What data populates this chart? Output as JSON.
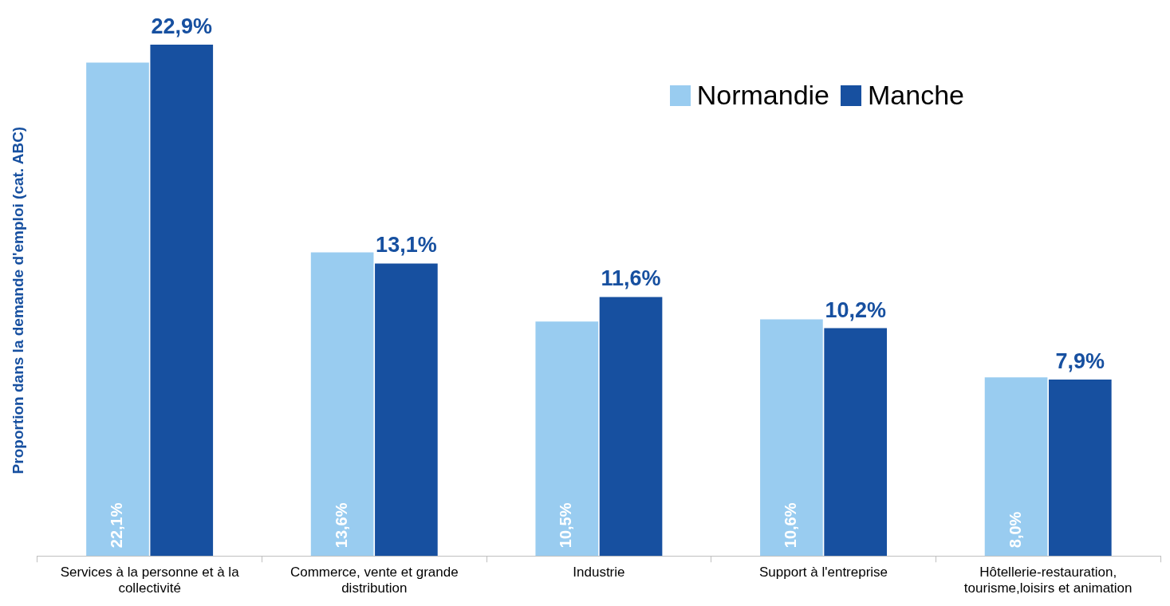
{
  "chart_data": {
    "type": "bar",
    "ylabel": "Proportion dans la demande d'emploi (cat. ABC)",
    "categories": [
      "Services à la personne et à la collectivité",
      "Commerce, vente et grande distribution",
      "Industrie",
      "Support à l'entreprise",
      "Hôtellerie-restauration, tourisme,loisirs et animation"
    ],
    "series": [
      {
        "name": "Normandie",
        "color": "#99ccf0",
        "values": [
          22.1,
          13.6,
          10.5,
          10.6,
          8.0
        ],
        "value_labels": [
          "22,1%",
          "13,6%",
          "10,5%",
          "10,6%",
          "8,0%"
        ]
      },
      {
        "name": "Manche",
        "color": "#1750a0",
        "values": [
          22.9,
          13.1,
          11.6,
          10.2,
          7.9
        ],
        "value_labels": [
          "22,9%",
          "13,1%",
          "11,6%",
          "10,2%",
          "7,9%"
        ]
      }
    ],
    "legend": "top right",
    "grid": false
  }
}
